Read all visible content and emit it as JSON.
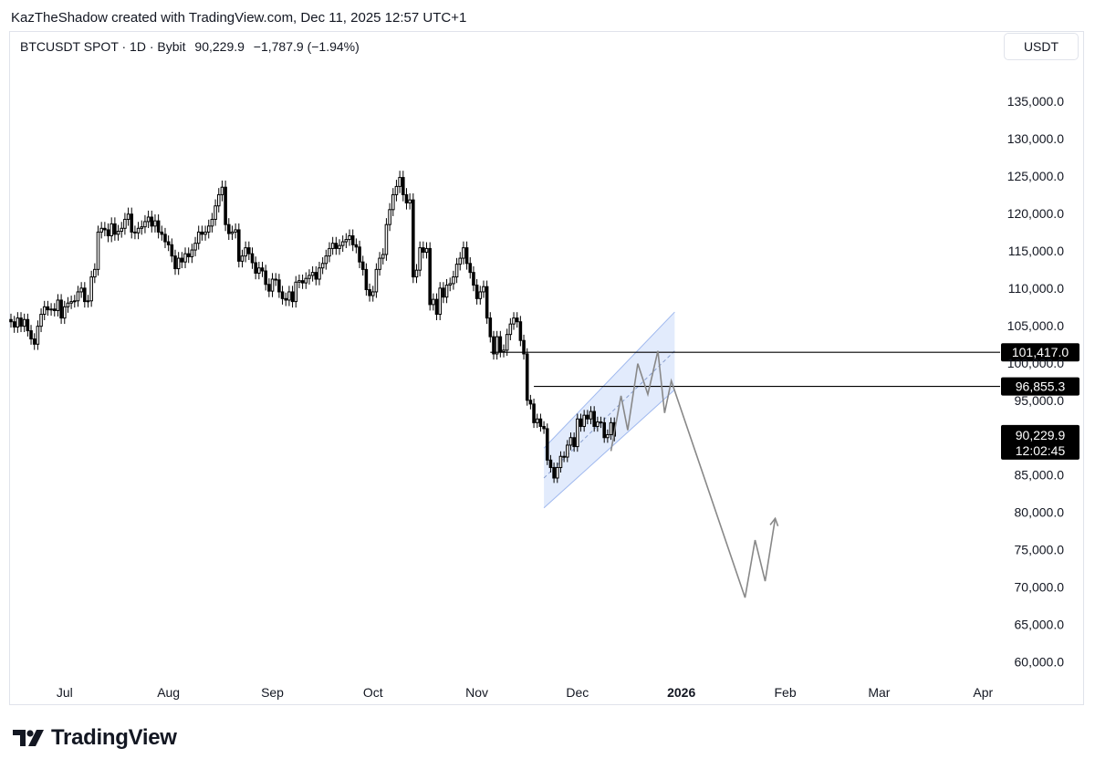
{
  "header": {
    "attribution": "KazTheShadow created with TradingView.com, Dec 11, 2025 12:57 UTC+1"
  },
  "legend": {
    "symbol": "BTCUSDT SPOT · 1D · Bybit",
    "price": "90,229.9",
    "change": "−1,787.9 (−1.94%)"
  },
  "currency_button": "USDT",
  "brand": {
    "name": "TradingView",
    "logo_icon": "tradingview-logo-icon"
  },
  "colors": {
    "candle": "#000000",
    "channel_fill": "#dbe6fb",
    "channel_line": "#9fb8ee",
    "projection": "#888888",
    "label_bg": "#000000"
  },
  "chart_data": {
    "type": "candlestick",
    "title": "BTCUSDT SPOT · 1D · Bybit",
    "ylim": [
      58000,
      140000
    ],
    "y_ticks": [
      "135,000.0",
      "130,000.0",
      "125,000.0",
      "120,000.0",
      "115,000.0",
      "110,000.0",
      "105,000.0",
      "100,000.0",
      "95,000.0",
      "85,000.0",
      "80,000.0",
      "75,000.0",
      "70,000.0",
      "65,000.0",
      "60,000.0"
    ],
    "y_tick_values": [
      135000,
      130000,
      125000,
      120000,
      115000,
      110000,
      105000,
      100000,
      95000,
      85000,
      80000,
      75000,
      70000,
      65000,
      60000
    ],
    "x_ticks": [
      {
        "label": "Jul",
        "date": "2025-07-01",
        "bold": false
      },
      {
        "label": "Aug",
        "date": "2025-08-01",
        "bold": false
      },
      {
        "label": "Sep",
        "date": "2025-09-01",
        "bold": false
      },
      {
        "label": "Oct",
        "date": "2025-10-01",
        "bold": false
      },
      {
        "label": "Nov",
        "date": "2025-11-01",
        "bold": false
      },
      {
        "label": "Dec",
        "date": "2025-12-01",
        "bold": false
      },
      {
        "label": "2026",
        "date": "2026-01-01",
        "bold": true
      },
      {
        "label": "Feb",
        "date": "2026-02-01",
        "bold": false
      },
      {
        "label": "Mar",
        "date": "2026-03-01",
        "bold": false
      },
      {
        "label": "Apr",
        "date": "2026-04-01",
        "bold": false
      }
    ],
    "x_range": [
      "2025-06-15",
      "2026-04-05"
    ],
    "series_close": {
      "start": "2025-06-15",
      "closes": [
        105500,
        104800,
        106000,
        104900,
        105800,
        104300,
        103200,
        102500,
        104900,
        106500,
        107500,
        107100,
        107200,
        107000,
        108400,
        106000,
        107500,
        108000,
        108200,
        108300,
        109500,
        110000,
        108200,
        108300,
        111500,
        112500,
        117500,
        118000,
        117800,
        117000,
        118600,
        117200,
        117600,
        118000,
        119200,
        119900,
        117500,
        117400,
        118000,
        118200,
        118900,
        119500,
        118300,
        119000,
        117500,
        117200,
        116200,
        115800,
        114300,
        112600,
        114000,
        113500,
        114600,
        114200,
        115100,
        116000,
        117500,
        117200,
        117500,
        118300,
        119200,
        121000,
        122500,
        123500,
        118500,
        117300,
        117500,
        117800,
        113600,
        114300,
        115400,
        114600,
        113400,
        112000,
        112700,
        112300,
        110500,
        109600,
        111200,
        111100,
        109500,
        108600,
        108400,
        109500,
        108200,
        110800,
        111000,
        110700,
        111300,
        111700,
        112100,
        111200,
        112700,
        113300,
        114300,
        115300,
        116000,
        115300,
        115700,
        116200,
        116500,
        117000,
        115800,
        115500,
        113500,
        112500,
        109800,
        109000,
        109500,
        112500,
        114000,
        114500,
        118500,
        120500,
        122500,
        123600,
        124800,
        122500,
        121400,
        121800,
        111500,
        112400,
        115400,
        114800,
        115300,
        107800,
        108500,
        106500,
        110000,
        108800,
        110400,
        110600,
        111500,
        113200,
        114000,
        115400,
        113300,
        112100,
        110400,
        108600,
        109500,
        110200,
        106000,
        103500,
        101200,
        103500,
        101500,
        101700,
        103800,
        105200,
        106000,
        105500,
        103000,
        101200,
        95000,
        94500,
        92000,
        92500,
        91500,
        91200,
        87000,
        86000,
        84600,
        86000,
        87500,
        87400,
        89000,
        90000,
        88800,
        92500,
        91500,
        93000,
        92500,
        93500,
        91500,
        92100,
        92000,
        90000,
        90400,
        92000,
        90200
      ]
    },
    "horizontal_levels": [
      {
        "value": 101417.0,
        "label": "101,417.0"
      },
      {
        "value": 96855.3,
        "label": "96,855.3"
      }
    ],
    "last_price": {
      "value": 90229.9,
      "label": "90,229.9",
      "countdown": "12:02:45"
    },
    "channel": {
      "start_date": "2025-11-21",
      "end_date": "2025-12-30",
      "upper_start": 88600,
      "upper_end": 106800,
      "lower_start": 80600,
      "lower_end": 96400
    },
    "projection_path": [
      [
        "2025-12-11",
        88200
      ],
      [
        "2025-12-14",
        95600
      ],
      [
        "2025-12-16",
        91000
      ],
      [
        "2025-12-19",
        99900
      ],
      [
        "2025-12-22",
        95800
      ],
      [
        "2025-12-25",
        101600
      ],
      [
        "2025-12-27",
        93300
      ],
      [
        "2025-12-29",
        97600
      ],
      [
        "2026-01-20",
        68600
      ],
      [
        "2026-01-23",
        76300
      ],
      [
        "2026-01-26",
        70800
      ],
      [
        "2026-01-29",
        79200
      ]
    ]
  }
}
